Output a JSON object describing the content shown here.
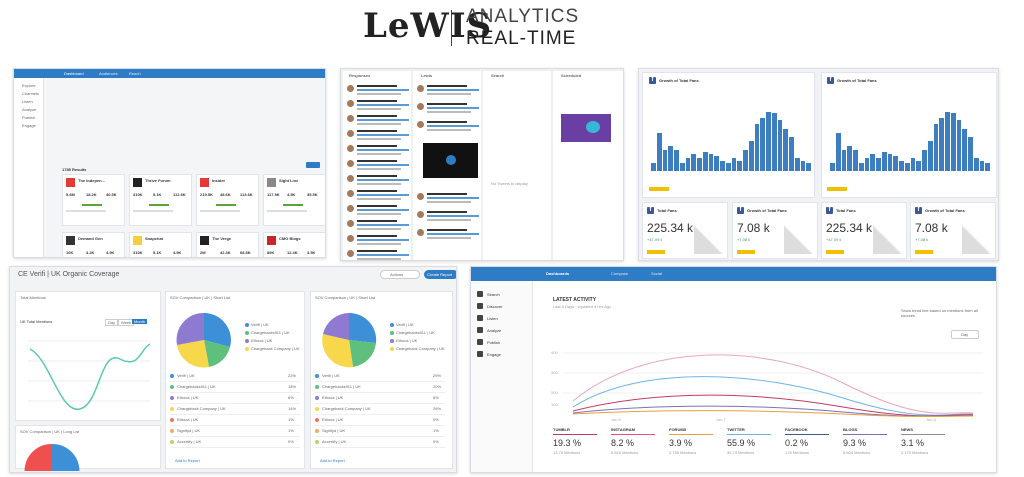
{
  "header": {
    "brand": "LeWIS",
    "title_line1": "ANALYTICS",
    "title_line2": "REAL-TIME"
  },
  "p1": {
    "tabs": [
      "Dashboard",
      "Audiences",
      "Reach"
    ],
    "sidebar": [
      "Explore",
      "Channels",
      "Listen",
      "Analyze",
      "Publish",
      "Engage"
    ],
    "results": "1785 Results",
    "cards": [
      {
        "name": "The Indepen...",
        "nums": [
          "5.6M",
          "18.2K",
          "40.5K"
        ]
      },
      {
        "name": "Thrive Forum",
        "nums": [
          "310K",
          "5.1K",
          "112.6K"
        ]
      },
      {
        "name": "Insider",
        "nums": [
          "219.5K",
          "48.6K",
          "113.6K"
        ]
      },
      {
        "name": "Sight Line",
        "nums": [
          "117.5K",
          "4.5K",
          "35.5K"
        ]
      },
      {
        "name": "Demand Gen",
        "nums": [
          "10K",
          "4.2K",
          "4.9K"
        ]
      },
      {
        "name": "Snapchat",
        "nums": [
          "310K",
          "5.1K",
          "4.9K"
        ]
      },
      {
        "name": "The Verge",
        "nums": [
          "2M",
          "42.3K",
          "68.5K"
        ]
      },
      {
        "name": "CMO Blogs",
        "nums": [
          "89K",
          "12.4K",
          "3.5K"
        ]
      }
    ]
  },
  "p2": {
    "cols": [
      "Responses",
      "Lewis",
      "Search",
      "Scheduled"
    ],
    "empty": "No Tweets to display"
  },
  "p3": {
    "chart_title": "Growth of Total Fans",
    "tile_titles": [
      "Total Fans",
      "Growth of Total Fans",
      "Total Fans",
      "Growth of Total Fans"
    ],
    "tile_values": [
      "225.34 k",
      "7.08 k",
      "225.34 k",
      "7.08 k"
    ],
    "tile_deltas": [
      "+47.09 k",
      "+7.08 k",
      "+47.09 k",
      "+7.08 k"
    ]
  },
  "p4": {
    "title": "CE Verifi | UK Organic Coverage",
    "actions": "Actions",
    "create": "Create Report",
    "widgets": [
      "Total Mentions",
      "SOV Comparison | UK | Short List",
      "SOV Comparison | UK | Short List"
    ],
    "widget_bottom": "SOV Comparison | UK | Long List",
    "line_label": "UK Total Mentions",
    "toggle": [
      "Day",
      "Week",
      "Month"
    ],
    "legend": [
      {
        "name": "Verifi | UK",
        "color": "#3d8fd8",
        "v1": "22%",
        "v2": "29%"
      },
      {
        "name": "Chargebacks911 | UK",
        "color": "#5ec07c",
        "v1": "18%",
        "v2": "20%"
      },
      {
        "name": "Ethoca | UK",
        "color": "#8e7bd1",
        "v1": "6%",
        "v2": "8%"
      },
      {
        "name": "Chargeback Company | UK",
        "color": "#f6d84a",
        "v1": "14%",
        "v2": "26%"
      },
      {
        "name": "Ethoca | UK",
        "color": "#ef7462",
        "v1": "1%",
        "v2": "0%"
      },
      {
        "name": "Signifyd | UK",
        "color": "#f2a96c",
        "v1": "1%",
        "v2": "1%"
      },
      {
        "name": "Accertify | UK",
        "color": "#b9d36a",
        "v1": "0%",
        "v2": "0%"
      }
    ],
    "add_more": "Add to Report"
  },
  "p5": {
    "nav": [
      "Dashboards",
      "Compose",
      "Social"
    ],
    "sidebar": [
      "Search",
      "Discover",
      "Listen",
      "Analyze",
      "Publish",
      "Engage"
    ],
    "title": "LATEST ACTIVITY",
    "subtitle": "Last 5 Days · Updated 4 Hrs Ago",
    "trend_label": "Show trend line based on mentions from all sources",
    "day": "Day",
    "x_ticks": [
      "Jun 6",
      "Jun 7",
      "Jun 8"
    ],
    "y_ticks": [
      "400",
      "300",
      "200",
      "100"
    ],
    "stats": [
      {
        "name": "TUMBLR",
        "pct": "19.3 %",
        "count": "13,78 Mentions",
        "color": "#c23b5c"
      },
      {
        "name": "INSTAGRAM",
        "pct": "8.2 %",
        "count": "5,816 Mentions",
        "color": "#e34f8f"
      },
      {
        "name": "FORUMS",
        "pct": "3.9 %",
        "count": "2,785 Mentions",
        "color": "#ea9f3e"
      },
      {
        "name": "TWITTER",
        "pct": "55.9 %",
        "count": "39,74 Mentions",
        "color": "#6fb4e8"
      },
      {
        "name": "FACEBOOK",
        "pct": "0.2 %",
        "count": "176 Mentions",
        "color": "#3b5998"
      },
      {
        "name": "BLOGS",
        "pct": "9.3 %",
        "count": "6,604 Mentions",
        "color": "#7a6fc0"
      },
      {
        "name": "NEWS",
        "pct": "3.1 %",
        "count": "2,179 Mentions",
        "color": "#8f8f8f"
      }
    ]
  },
  "colors": {
    "accent": "#3d7ec0",
    "facebook": "#3b5998",
    "yellow": "#f0c000"
  }
}
